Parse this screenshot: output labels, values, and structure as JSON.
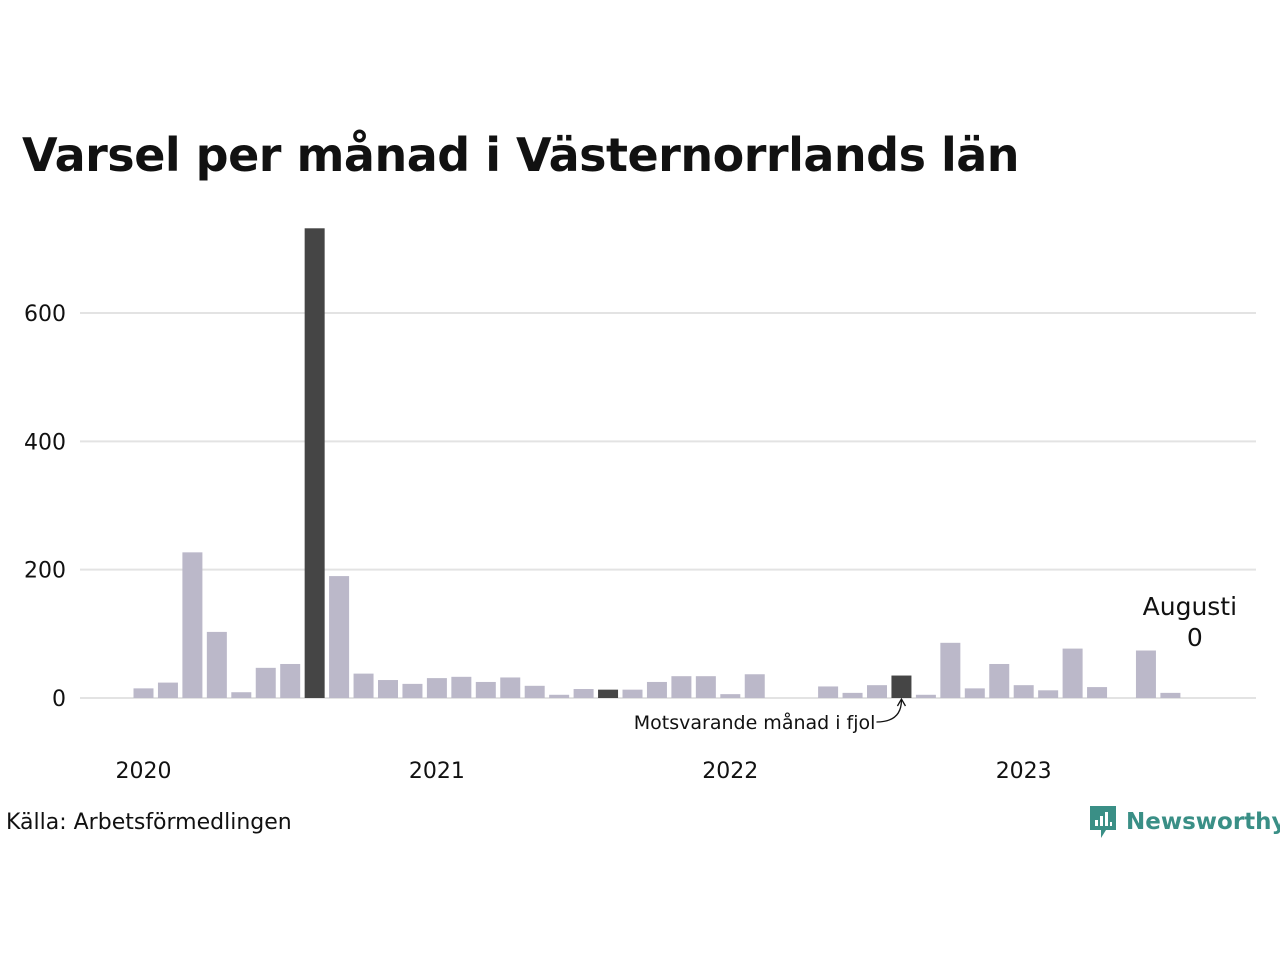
{
  "chart_data": {
    "type": "bar",
    "title": "Varsel per månad i Västernorrlands län",
    "source": "Källa: Arbetsförmedlingen",
    "brand": "Newsworthy",
    "ylim": [
      0,
      750
    ],
    "y_ticks": [
      0,
      200,
      400,
      600
    ],
    "x_tick_labels": [
      {
        "label": "2020",
        "month_index": 0
      },
      {
        "label": "2021",
        "month_index": 12
      },
      {
        "label": "2022",
        "month_index": 24
      },
      {
        "label": "2023",
        "month_index": 36
      }
    ],
    "start": "2020-01",
    "months": 44,
    "values": [
      15,
      24,
      227,
      103,
      9,
      47,
      53,
      732,
      190,
      38,
      28,
      22,
      31,
      33,
      25,
      32,
      19,
      5,
      14,
      13,
      13,
      25,
      34,
      34,
      6,
      37,
      0,
      0,
      18,
      8,
      20,
      35,
      5,
      86,
      15,
      53,
      20,
      12,
      77,
      17,
      0,
      74,
      8,
      0
    ],
    "highlight_months": [
      7,
      19,
      31
    ],
    "annotation": {
      "text": "Motsvarande månad i fjol",
      "month_index": 31
    },
    "last_label": {
      "month": "Augusti",
      "value": "0",
      "month_index": 43
    },
    "colors": {
      "bar": "#bbb8c9",
      "highlight": "#454545",
      "grid": "#e3e3e3",
      "brand": "#3a8f86"
    }
  }
}
